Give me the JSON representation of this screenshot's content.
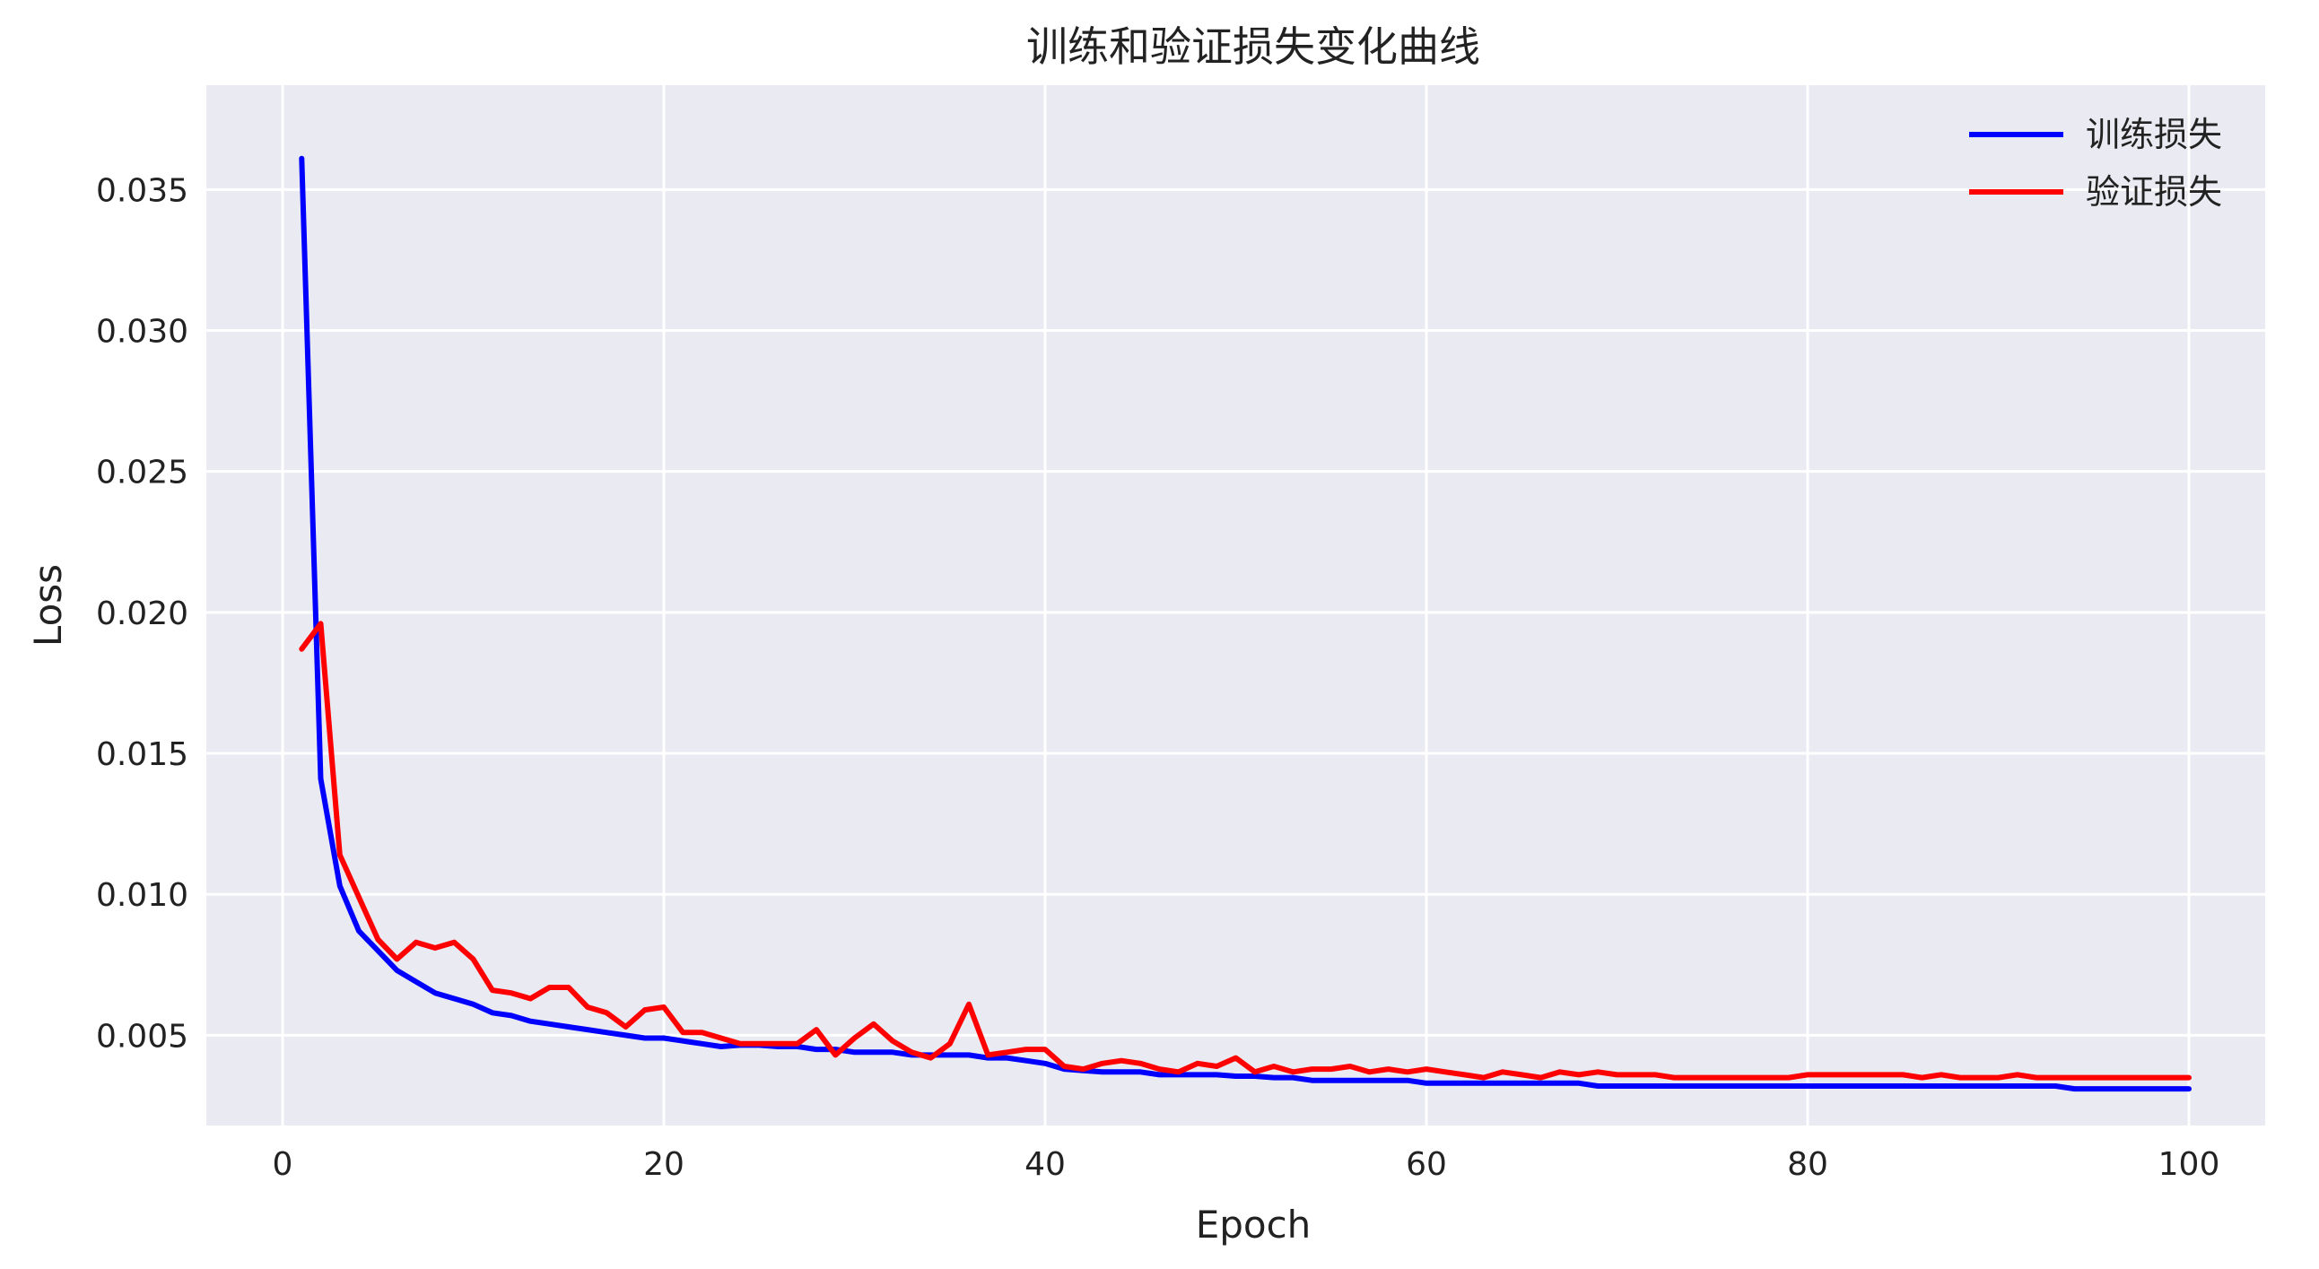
{
  "chart_data": {
    "type": "line",
    "title": "训练和验证损失变化曲线",
    "xlabel": "Epoch",
    "ylabel": "Loss",
    "xlim": [
      -4,
      104
    ],
    "ylim": [
      0.0018,
      0.0387
    ],
    "xticks": [
      0,
      20,
      40,
      60,
      80,
      100
    ],
    "xtick_labels": [
      "0",
      "20",
      "40",
      "60",
      "80",
      "100"
    ],
    "yticks": [
      0.005,
      0.01,
      0.015,
      0.02,
      0.025,
      0.03,
      0.035
    ],
    "ytick_labels": [
      "0.005",
      "0.010",
      "0.015",
      "0.020",
      "0.025",
      "0.030",
      "0.035"
    ],
    "grid": true,
    "background": "#eaeaf2",
    "legend_position": "top-right",
    "series": [
      {
        "name": "训练损失",
        "color": "#0000ff",
        "x": [
          1,
          2,
          3,
          4,
          5,
          6,
          7,
          8,
          9,
          10,
          11,
          12,
          13,
          14,
          15,
          16,
          17,
          18,
          19,
          20,
          21,
          22,
          23,
          24,
          25,
          26,
          27,
          28,
          29,
          30,
          31,
          32,
          33,
          34,
          35,
          36,
          37,
          38,
          39,
          40,
          41,
          42,
          43,
          44,
          45,
          46,
          47,
          48,
          49,
          50,
          51,
          52,
          53,
          54,
          55,
          56,
          57,
          58,
          59,
          60,
          61,
          62,
          63,
          64,
          65,
          66,
          67,
          68,
          69,
          70,
          71,
          72,
          73,
          74,
          75,
          76,
          77,
          78,
          79,
          80,
          81,
          82,
          83,
          84,
          85,
          86,
          87,
          88,
          89,
          90,
          91,
          92,
          93,
          94,
          95,
          96,
          97,
          98,
          99,
          100
        ],
        "y": [
          0.0361,
          0.0141,
          0.0103,
          0.0087,
          0.008,
          0.0073,
          0.0069,
          0.0065,
          0.0063,
          0.0061,
          0.0058,
          0.0057,
          0.0055,
          0.0054,
          0.0053,
          0.0052,
          0.0051,
          0.005,
          0.0049,
          0.0049,
          0.0048,
          0.0047,
          0.0046,
          0.00465,
          0.00465,
          0.0046,
          0.0046,
          0.0045,
          0.0045,
          0.0044,
          0.0044,
          0.0044,
          0.0043,
          0.0043,
          0.0043,
          0.0043,
          0.0042,
          0.0042,
          0.0041,
          0.004,
          0.0038,
          0.00375,
          0.0037,
          0.0037,
          0.0037,
          0.0036,
          0.0036,
          0.0036,
          0.0036,
          0.00355,
          0.00355,
          0.0035,
          0.0035,
          0.0034,
          0.0034,
          0.0034,
          0.0034,
          0.0034,
          0.0034,
          0.0033,
          0.0033,
          0.0033,
          0.0033,
          0.0033,
          0.0033,
          0.0033,
          0.0033,
          0.0033,
          0.0032,
          0.0032,
          0.0032,
          0.0032,
          0.0032,
          0.0032,
          0.0032,
          0.0032,
          0.0032,
          0.0032,
          0.0032,
          0.0032,
          0.0032,
          0.0032,
          0.0032,
          0.0032,
          0.0032,
          0.0032,
          0.0032,
          0.0032,
          0.0032,
          0.0032,
          0.0032,
          0.0032,
          0.0032,
          0.0031,
          0.0031,
          0.0031,
          0.0031,
          0.0031,
          0.0031,
          0.0031
        ]
      },
      {
        "name": "验证损失",
        "color": "#ff0000",
        "x": [
          1,
          2,
          3,
          4,
          5,
          6,
          7,
          8,
          9,
          10,
          11,
          12,
          13,
          14,
          15,
          16,
          17,
          18,
          19,
          20,
          21,
          22,
          23,
          24,
          25,
          26,
          27,
          28,
          29,
          30,
          31,
          32,
          33,
          34,
          35,
          36,
          37,
          38,
          39,
          40,
          41,
          42,
          43,
          44,
          45,
          46,
          47,
          48,
          49,
          50,
          51,
          52,
          53,
          54,
          55,
          56,
          57,
          58,
          59,
          60,
          61,
          62,
          63,
          64,
          65,
          66,
          67,
          68,
          69,
          70,
          71,
          72,
          73,
          74,
          75,
          76,
          77,
          78,
          79,
          80,
          81,
          82,
          83,
          84,
          85,
          86,
          87,
          88,
          89,
          90,
          91,
          92,
          93,
          94,
          95,
          96,
          97,
          98,
          99,
          100
        ],
        "y": [
          0.0187,
          0.0196,
          0.0114,
          0.0099,
          0.0084,
          0.0077,
          0.0083,
          0.0081,
          0.0083,
          0.0077,
          0.0066,
          0.0065,
          0.0063,
          0.0067,
          0.0067,
          0.006,
          0.0058,
          0.0053,
          0.0059,
          0.006,
          0.0051,
          0.0051,
          0.0049,
          0.0047,
          0.0047,
          0.0047,
          0.0047,
          0.0052,
          0.0043,
          0.0049,
          0.0054,
          0.0048,
          0.0044,
          0.0042,
          0.0047,
          0.0061,
          0.0043,
          0.0044,
          0.0045,
          0.0045,
          0.0039,
          0.0038,
          0.004,
          0.0041,
          0.004,
          0.0038,
          0.0037,
          0.004,
          0.0039,
          0.0042,
          0.0037,
          0.0039,
          0.0037,
          0.0038,
          0.0038,
          0.0039,
          0.0037,
          0.0038,
          0.0037,
          0.0038,
          0.0037,
          0.0036,
          0.0035,
          0.0037,
          0.0036,
          0.0035,
          0.0037,
          0.0036,
          0.0037,
          0.0036,
          0.0036,
          0.0036,
          0.0035,
          0.0035,
          0.0035,
          0.0035,
          0.0035,
          0.0035,
          0.0035,
          0.0036,
          0.0036,
          0.0036,
          0.0036,
          0.0036,
          0.0036,
          0.0035,
          0.0036,
          0.0035,
          0.0035,
          0.0035,
          0.0036,
          0.0035,
          0.0035,
          0.0035,
          0.0035,
          0.0035,
          0.0035,
          0.0035,
          0.0035,
          0.0035
        ]
      }
    ]
  }
}
